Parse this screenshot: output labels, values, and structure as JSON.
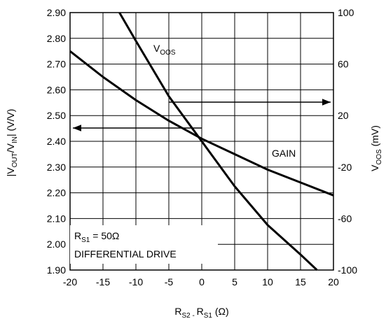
{
  "chart_data": {
    "type": "line",
    "xlabel": {
      "main": "R",
      "sub1": "S2 - ",
      "mid": "R",
      "sub2": "S1",
      "unit": " (Ω)"
    },
    "ylabel_left": {
      "pre": "|V",
      "sub1": "OUT",
      "mid": "/V",
      "sub2": "IN",
      "post": "| (V/V)"
    },
    "ylabel_right": {
      "main": "V",
      "sub": "OOS",
      "unit": " (mV)"
    },
    "xlim": [
      -20,
      20
    ],
    "ylim_left": [
      1.9,
      2.9
    ],
    "ylim_right": [
      -100,
      100
    ],
    "x_ticks": [
      "-20",
      "-15",
      "-10",
      "-5",
      "0",
      "5",
      "10",
      "15",
      "20"
    ],
    "y_left_ticks": [
      "1.90",
      "2.00",
      "2.10",
      "2.20",
      "2.30",
      "2.40",
      "2.50",
      "2.60",
      "2.70",
      "2.80",
      "2.90"
    ],
    "y_right_ticks": [
      "-100",
      "-60",
      "-20",
      "20",
      "60",
      "100"
    ],
    "grid": true,
    "series": [
      {
        "name": "GAIN",
        "axis": "left",
        "x": [
          -20,
          -15,
          -10,
          -5,
          0,
          5,
          10,
          15,
          20
        ],
        "values": [
          2.75,
          2.65,
          2.56,
          2.48,
          2.41,
          2.35,
          2.29,
          2.24,
          2.19
        ]
      },
      {
        "name": "VOOS",
        "axis": "right",
        "x": [
          -12.5,
          -10,
          -5,
          0,
          5,
          10,
          15,
          17.5
        ],
        "values": [
          100,
          78,
          35,
          0,
          -35,
          -65,
          -88,
          -100
        ]
      }
    ],
    "annotations": {
      "gain_label": "GAIN",
      "voos_label": {
        "main": "V",
        "sub": "OOS"
      },
      "condition_1": {
        "main": "R",
        "sub": "S1",
        "rest": " = 50Ω"
      },
      "condition_2": "DIFFERENTIAL DRIVE",
      "arrow_left": "points to left axis (gain)",
      "arrow_right": "points to right axis (VOOS)"
    }
  }
}
